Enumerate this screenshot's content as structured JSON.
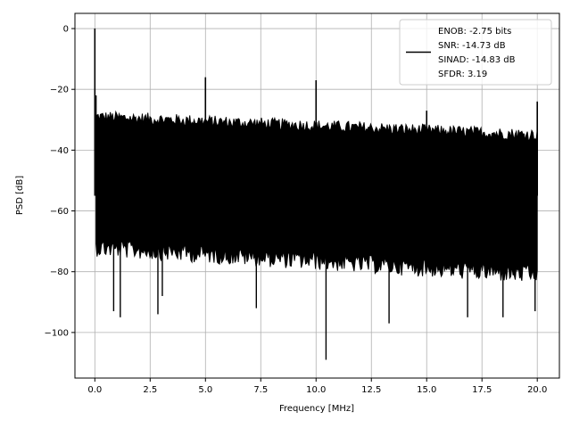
{
  "chart_data": {
    "type": "line",
    "title": "",
    "xlabel": "Frequency [MHz]",
    "ylabel": "PSD [dB]",
    "xlim": [
      -0.9,
      21.0
    ],
    "ylim": [
      -115,
      5
    ],
    "xticks": [
      0.0,
      2.5,
      5.0,
      7.5,
      10.0,
      12.5,
      15.0,
      17.5,
      20.0
    ],
    "xtick_labels": [
      "0.0",
      "2.5",
      "5.0",
      "7.5",
      "10.0",
      "12.5",
      "15.0",
      "17.5",
      "20.0"
    ],
    "yticks": [
      0,
      -20,
      -40,
      -60,
      -80,
      -100
    ],
    "ytick_labels": [
      "0",
      "−20",
      "−40",
      "−60",
      "−80",
      "−100"
    ],
    "grid": true,
    "legend_position": "top-right",
    "series_color": "#000000",
    "legend": {
      "lines": [
        "ENOB: -2.75 bits",
        "SNR: -14.73 dB",
        "SINAD: -14.83 dB",
        "SFDR: 3.19"
      ]
    },
    "noise_floor": {
      "x_range": [
        0.05,
        20.0
      ],
      "upper_db_start": -29,
      "upper_db_end": -35,
      "lower_db_start": -69,
      "lower_db_end": -78
    },
    "peaks": [
      {
        "x": 0.0,
        "y": 0
      },
      {
        "x": 0.05,
        "y": -22
      },
      {
        "x": 5.0,
        "y": -16
      },
      {
        "x": 10.0,
        "y": -17
      },
      {
        "x": 15.0,
        "y": -27
      },
      {
        "x": 20.0,
        "y": -24
      }
    ],
    "dips": [
      {
        "x": 0.85,
        "y": -93
      },
      {
        "x": 1.15,
        "y": -95
      },
      {
        "x": 2.85,
        "y": -94
      },
      {
        "x": 3.05,
        "y": -88
      },
      {
        "x": 7.3,
        "y": -92
      },
      {
        "x": 10.45,
        "y": -109
      },
      {
        "x": 13.3,
        "y": -97
      },
      {
        "x": 16.85,
        "y": -95
      },
      {
        "x": 18.45,
        "y": -95
      },
      {
        "x": 19.9,
        "y": -93
      }
    ]
  }
}
